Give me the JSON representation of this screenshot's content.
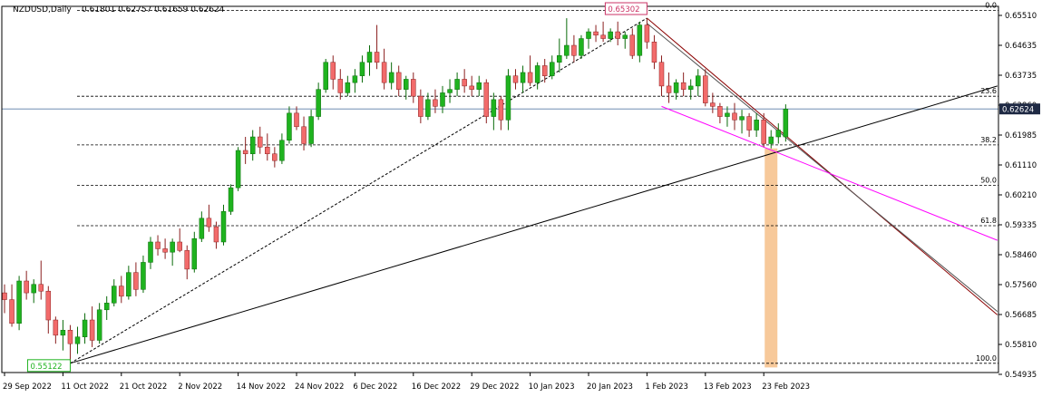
{
  "chart_data": {
    "type": "candlestick",
    "symbol_label": "NZDUSD,Daily",
    "ohlc_label": "0.61801 0.62757 0.61659 0.62624",
    "current_price_label": "0.62624",
    "current_price": 0.62624,
    "ylim": [
      0.5485,
      0.6565
    ],
    "y_ticks": [
      "0.65510",
      "0.64635",
      "0.63735",
      "0.62860",
      "0.61985",
      "0.61110",
      "0.60210",
      "0.59335",
      "0.58460",
      "0.57560",
      "0.56685",
      "0.55810",
      "0.54935"
    ],
    "x_ticks": [
      {
        "label": "29 Sep 2022",
        "index": 0
      },
      {
        "label": "11 Oct 2022",
        "index": 8
      },
      {
        "label": "21 Oct 2022",
        "index": 16
      },
      {
        "label": "2 Nov 2022",
        "index": 24
      },
      {
        "label": "14 Nov 2022",
        "index": 32
      },
      {
        "label": "24 Nov 2022",
        "index": 40
      },
      {
        "label": "6 Dec 2022",
        "index": 48
      },
      {
        "label": "16 Dec 2022",
        "index": 56
      },
      {
        "label": "29 Dec 2022",
        "index": 64
      },
      {
        "label": "10 Jan 2023",
        "index": 72
      },
      {
        "label": "20 Jan 2023",
        "index": 80
      },
      {
        "label": "1 Feb 2023",
        "index": 88
      },
      {
        "label": "13 Feb 2023",
        "index": 96
      },
      {
        "label": "23 Feb 2023",
        "index": 104
      }
    ],
    "colors": {
      "up": "#1fb31f",
      "down": "#f26b6b",
      "fib": "#000000",
      "pink": "#ff00ff",
      "down_line": "#8b0000",
      "band": "#f7c99a",
      "price_line": "#5a7da6"
    },
    "fib_levels": [
      {
        "label": "0.0",
        "value": 0.6553
      },
      {
        "label": "23.6",
        "value": 0.62998
      },
      {
        "label": "38.2",
        "value": 0.61564
      },
      {
        "label": "50.0",
        "value": 0.60373
      },
      {
        "label": "61.8",
        "value": 0.59181
      },
      {
        "label": "100.0",
        "value": 0.55122
      }
    ],
    "annotations": {
      "high_label": "0.65302",
      "high_value": 0.65302,
      "high_index": 88,
      "low_label": "0.55122",
      "low_value": 0.55122,
      "low_index": 9
    },
    "trendlines": [
      {
        "name": "support",
        "color": "#000000",
        "from": {
          "index": 9,
          "value": 0.55122
        },
        "to": {
          "index": 136,
          "value": 0.633
        }
      },
      {
        "name": "fib-diagonal",
        "color": "#000000",
        "dashed": true,
        "from": {
          "index": 9,
          "value": 0.55122
        },
        "to": {
          "index": 88,
          "value": 0.65302
        }
      },
      {
        "name": "down-1",
        "color": "#8b0000",
        "from": {
          "index": 88,
          "value": 0.65302
        },
        "to": {
          "index": 136,
          "value": 0.5655
        }
      },
      {
        "name": "down-2",
        "color": "#555555",
        "from": {
          "index": 88,
          "value": 0.6515
        },
        "to": {
          "index": 136,
          "value": 0.5665
        }
      },
      {
        "name": "channel",
        "color": "#ff00ff",
        "from": {
          "index": 90,
          "value": 0.627
        },
        "to": {
          "index": 136,
          "value": 0.5875
        }
      }
    ],
    "highlight_band": {
      "index": 105,
      "from": 0.6146,
      "to": 0.55
    },
    "candles": [
      [
        0.572,
        0.5745,
        0.566,
        0.57
      ],
      [
        0.57,
        0.5745,
        0.562,
        0.563
      ],
      [
        0.563,
        0.577,
        0.561,
        0.5755
      ],
      [
        0.5755,
        0.5785,
        0.57,
        0.572
      ],
      [
        0.572,
        0.576,
        0.569,
        0.5745
      ],
      [
        0.5745,
        0.5815,
        0.57,
        0.5725
      ],
      [
        0.5725,
        0.574,
        0.56,
        0.564
      ],
      [
        0.564,
        0.565,
        0.557,
        0.5595
      ],
      [
        0.5595,
        0.564,
        0.555,
        0.561
      ],
      [
        0.561,
        0.5625,
        0.5512,
        0.557
      ],
      [
        0.557,
        0.562,
        0.554,
        0.559
      ],
      [
        0.559,
        0.566,
        0.557,
        0.564
      ],
      [
        0.564,
        0.568,
        0.556,
        0.558
      ],
      [
        0.558,
        0.569,
        0.557,
        0.567
      ],
      [
        0.567,
        0.571,
        0.564,
        0.569
      ],
      [
        0.569,
        0.576,
        0.568,
        0.574
      ],
      [
        0.574,
        0.577,
        0.569,
        0.571
      ],
      [
        0.571,
        0.58,
        0.57,
        0.578
      ],
      [
        0.578,
        0.581,
        0.571,
        0.573
      ],
      [
        0.573,
        0.583,
        0.572,
        0.581
      ],
      [
        0.581,
        0.5885,
        0.579,
        0.587
      ],
      [
        0.587,
        0.589,
        0.583,
        0.585
      ],
      [
        0.585,
        0.588,
        0.582,
        0.584
      ],
      [
        0.584,
        0.588,
        0.58,
        0.587
      ],
      [
        0.587,
        0.591,
        0.584,
        0.5845
      ],
      [
        0.5845,
        0.586,
        0.576,
        0.579
      ],
      [
        0.579,
        0.59,
        0.578,
        0.588
      ],
      [
        0.588,
        0.596,
        0.587,
        0.594
      ],
      [
        0.594,
        0.598,
        0.59,
        0.5915
      ],
      [
        0.5915,
        0.593,
        0.585,
        0.587
      ],
      [
        0.587,
        0.598,
        0.586,
        0.596
      ],
      [
        0.596,
        0.604,
        0.595,
        0.603
      ],
      [
        0.603,
        0.615,
        0.602,
        0.614
      ],
      [
        0.614,
        0.618,
        0.61,
        0.613
      ],
      [
        0.613,
        0.62,
        0.611,
        0.618
      ],
      [
        0.618,
        0.621,
        0.613,
        0.615
      ],
      [
        0.615,
        0.619,
        0.611,
        0.613
      ],
      [
        0.613,
        0.615,
        0.609,
        0.611
      ],
      [
        0.611,
        0.619,
        0.61,
        0.617
      ],
      [
        0.617,
        0.627,
        0.616,
        0.625
      ],
      [
        0.625,
        0.627,
        0.62,
        0.621
      ],
      [
        0.621,
        0.624,
        0.614,
        0.616
      ],
      [
        0.616,
        0.626,
        0.615,
        0.624
      ],
      [
        0.624,
        0.634,
        0.623,
        0.632
      ],
      [
        0.632,
        0.641,
        0.631,
        0.64
      ],
      [
        0.64,
        0.642,
        0.632,
        0.635
      ],
      [
        0.635,
        0.638,
        0.629,
        0.631
      ],
      [
        0.631,
        0.636,
        0.63,
        0.634
      ],
      [
        0.634,
        0.638,
        0.631,
        0.636
      ],
      [
        0.636,
        0.642,
        0.634,
        0.64
      ],
      [
        0.64,
        0.645,
        0.636,
        0.643
      ],
      [
        0.643,
        0.651,
        0.638,
        0.64
      ],
      [
        0.64,
        0.644,
        0.632,
        0.634
      ],
      [
        0.634,
        0.64,
        0.632,
        0.637
      ],
      [
        0.637,
        0.639,
        0.63,
        0.632
      ],
      [
        0.632,
        0.636,
        0.629,
        0.635
      ],
      [
        0.635,
        0.637,
        0.628,
        0.63
      ],
      [
        0.63,
        0.632,
        0.622,
        0.624
      ],
      [
        0.624,
        0.631,
        0.623,
        0.629
      ],
      [
        0.629,
        0.632,
        0.625,
        0.627
      ],
      [
        0.627,
        0.633,
        0.625,
        0.631
      ],
      [
        0.631,
        0.635,
        0.628,
        0.632
      ],
      [
        0.632,
        0.637,
        0.63,
        0.635
      ],
      [
        0.635,
        0.638,
        0.631,
        0.633
      ],
      [
        0.633,
        0.636,
        0.63,
        0.632
      ],
      [
        0.632,
        0.636,
        0.63,
        0.634
      ],
      [
        0.634,
        0.635,
        0.622,
        0.624
      ],
      [
        0.624,
        0.631,
        0.62,
        0.629
      ],
      [
        0.629,
        0.63,
        0.62,
        0.623
      ],
      [
        0.623,
        0.638,
        0.62,
        0.636
      ],
      [
        0.636,
        0.638,
        0.632,
        0.634
      ],
      [
        0.634,
        0.639,
        0.631,
        0.637
      ],
      [
        0.637,
        0.642,
        0.633,
        0.634
      ],
      [
        0.634,
        0.64,
        0.632,
        0.639
      ],
      [
        0.639,
        0.641,
        0.634,
        0.636
      ],
      [
        0.636,
        0.642,
        0.635,
        0.64
      ],
      [
        0.64,
        0.647,
        0.637,
        0.642
      ],
      [
        0.642,
        0.653,
        0.641,
        0.645
      ],
      [
        0.645,
        0.648,
        0.64,
        0.642
      ],
      [
        0.642,
        0.648,
        0.641,
        0.647
      ],
      [
        0.647,
        0.65,
        0.644,
        0.649
      ],
      [
        0.649,
        0.651,
        0.646,
        0.648
      ],
      [
        0.648,
        0.652,
        0.646,
        0.647
      ],
      [
        0.647,
        0.65,
        0.646,
        0.649
      ],
      [
        0.649,
        0.652,
        0.645,
        0.647
      ],
      [
        0.647,
        0.649,
        0.644,
        0.648
      ],
      [
        0.648,
        0.65,
        0.641,
        0.642
      ],
      [
        0.642,
        0.652,
        0.64,
        0.651
      ],
      [
        0.651,
        0.653,
        0.644,
        0.646
      ],
      [
        0.646,
        0.648,
        0.638,
        0.64
      ],
      [
        0.64,
        0.642,
        0.63,
        0.633
      ],
      [
        0.633,
        0.637,
        0.628,
        0.631
      ],
      [
        0.631,
        0.635,
        0.629,
        0.634
      ],
      [
        0.634,
        0.637,
        0.63,
        0.632
      ],
      [
        0.632,
        0.635,
        0.629,
        0.633
      ],
      [
        0.633,
        0.638,
        0.63,
        0.636
      ],
      [
        0.636,
        0.638,
        0.627,
        0.628
      ],
      [
        0.628,
        0.631,
        0.625,
        0.627
      ],
      [
        0.627,
        0.628,
        0.622,
        0.624
      ],
      [
        0.624,
        0.627,
        0.621,
        0.625
      ],
      [
        0.625,
        0.628,
        0.62,
        0.623
      ],
      [
        0.623,
        0.626,
        0.619,
        0.624
      ],
      [
        0.624,
        0.625,
        0.618,
        0.62
      ],
      [
        0.62,
        0.625,
        0.618,
        0.623
      ],
      [
        0.623,
        0.625,
        0.615,
        0.616
      ],
      [
        0.616,
        0.62,
        0.6146,
        0.618
      ],
      [
        0.618,
        0.622,
        0.616,
        0.62
      ],
      [
        0.618,
        0.6276,
        0.6166,
        0.6262
      ]
    ]
  }
}
